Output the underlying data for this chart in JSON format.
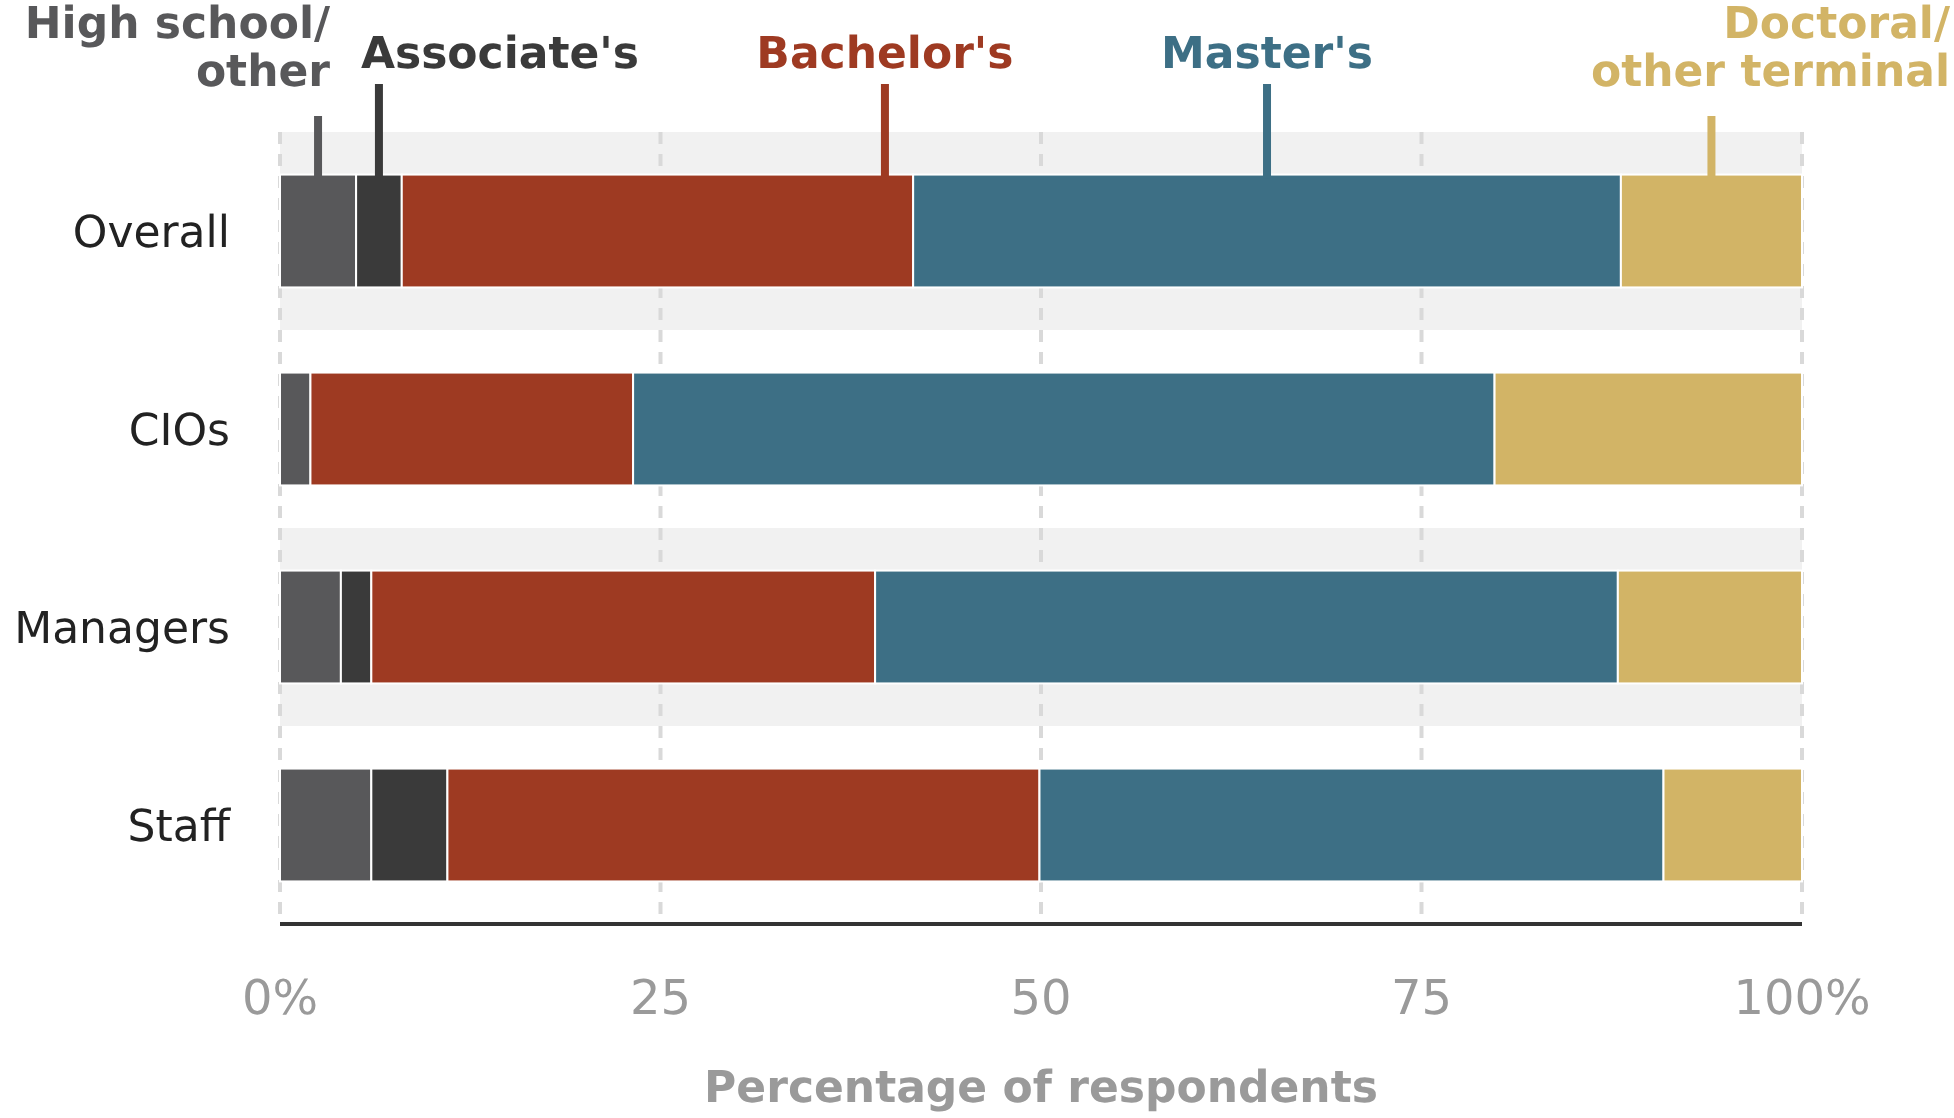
{
  "chart_data": {
    "type": "bar",
    "orientation": "horizontal",
    "stacked": true,
    "xlabel": "Percentage of respondents",
    "categories": [
      "Overall",
      "CIOs",
      "Managers",
      "Staff"
    ],
    "series": [
      {
        "name": "High school/other",
        "color": "#58585a",
        "values": [
          5,
          2,
          4,
          6
        ]
      },
      {
        "name": "Associate's",
        "color": "#3a3a3a",
        "values": [
          3,
          0,
          2,
          5
        ]
      },
      {
        "name": "Bachelor's",
        "color": "#9e3a22",
        "values": [
          33.6,
          21.2,
          33.1,
          38.9
        ]
      },
      {
        "name": "Master's",
        "color": "#3d6f85",
        "values": [
          46.5,
          56.6,
          48.8,
          41
        ]
      },
      {
        "name": "Doctoral/other terminal",
        "color": "#d2b466",
        "values": [
          11.9,
          20.2,
          12.1,
          9.1
        ]
      }
    ],
    "xlim": [
      0,
      100
    ],
    "xticks": [
      {
        "value": 0,
        "label": "0%"
      },
      25,
      50,
      75,
      {
        "value": 100,
        "label": "100%"
      }
    ],
    "grid": "x",
    "legend": "top"
  }
}
